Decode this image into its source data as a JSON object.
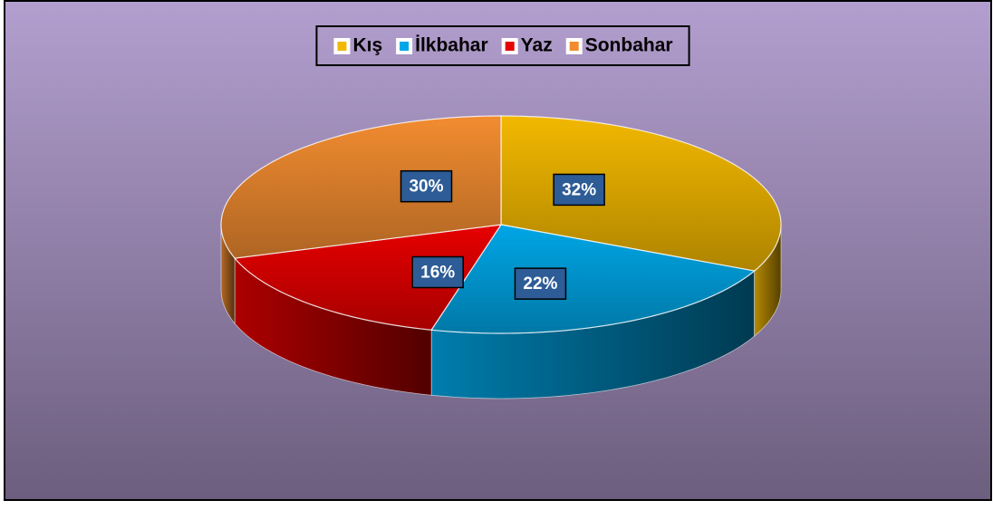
{
  "chart_data": {
    "type": "pie",
    "categories": [
      "Kış",
      "İlkbahar",
      "Yaz",
      "Sonbahar"
    ],
    "values": [
      32,
      22,
      16,
      30
    ],
    "value_labels": [
      "32%",
      "22%",
      "16%",
      "30%"
    ],
    "colors": [
      "#f2b800",
      "#00a6e6",
      "#e60000",
      "#f28c30"
    ],
    "legend": "top",
    "start_angle": 0,
    "direction": "clockwise"
  }
}
